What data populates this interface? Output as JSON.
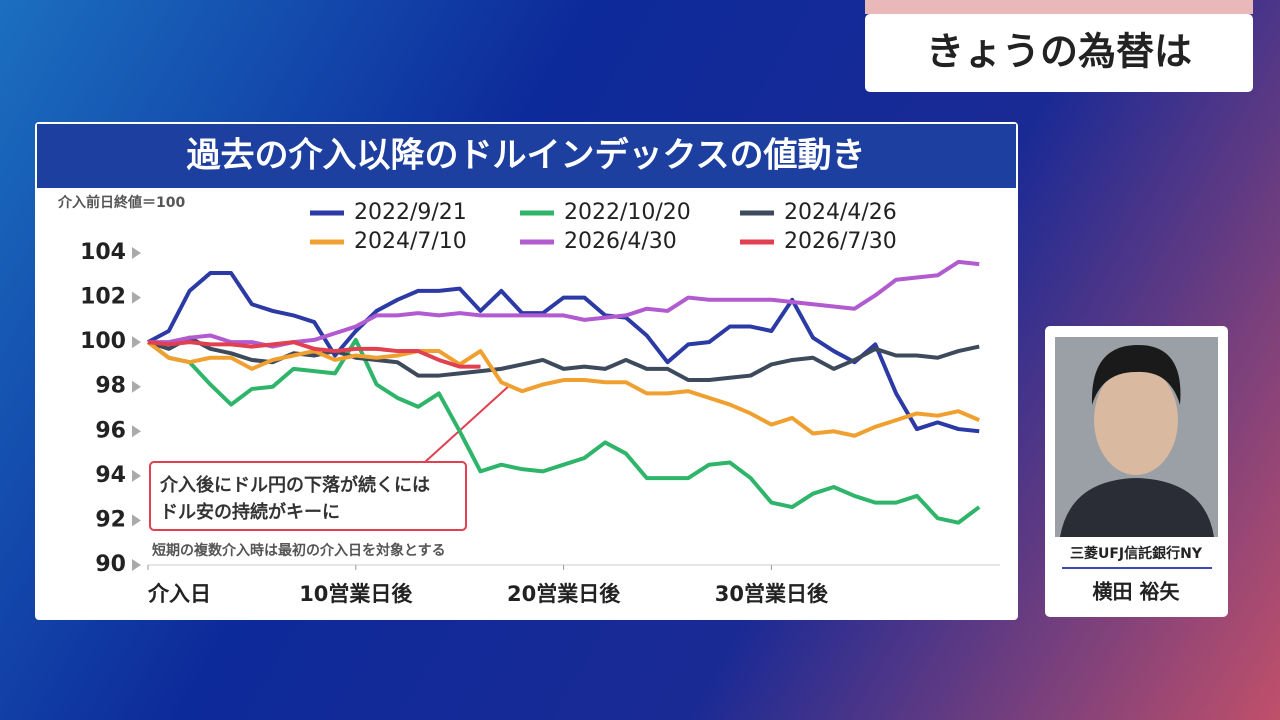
{
  "header": {
    "title": "きょうの為替は"
  },
  "speaker": {
    "affiliation": "三菱UFJ信託銀行NY",
    "name": "横田 裕矢"
  },
  "chart_data": {
    "type": "line",
    "title": "過去の介入以降のドルインデックスの値動き",
    "y_label": "介入前日終値＝100",
    "annotation": [
      "介入後にドル円の下落が続くには",
      "ドル安の持続がキーに"
    ],
    "note": "短期の複数介入時は最初の介入日を対象とする",
    "x": [
      0,
      1,
      2,
      3,
      4,
      5,
      6,
      7,
      8,
      9,
      10,
      11,
      12,
      13,
      14,
      15,
      16,
      17,
      18,
      19,
      20,
      21,
      22,
      23,
      24,
      25,
      26,
      27,
      28,
      29,
      30,
      31,
      32,
      33,
      34,
      35,
      36,
      37,
      38,
      39,
      40
    ],
    "xlim": [
      0,
      41
    ],
    "xticks": [
      {
        "value": 0,
        "label": "介入日"
      },
      {
        "value": 10,
        "label": "10営業日後"
      },
      {
        "value": 20,
        "label": "20営業日後"
      },
      {
        "value": 30,
        "label": "30営業日後"
      }
    ],
    "ylim": [
      90,
      104
    ],
    "yticks": [
      90,
      92,
      94,
      96,
      98,
      100,
      102,
      104
    ],
    "series": [
      {
        "name": "2022/9/21",
        "color": "#2b3aa5",
        "values": [
          100,
          100.5,
          102.3,
          103.1,
          103.1,
          101.7,
          101.4,
          101.2,
          100.9,
          99.4,
          100.5,
          101.4,
          101.9,
          102.3,
          102.3,
          102.4,
          101.4,
          102.3,
          101.3,
          101.3,
          102.0,
          102.0,
          101.2,
          101.1,
          100.3,
          99.1,
          99.9,
          100.0,
          100.7,
          100.7,
          100.5,
          101.9,
          100.2,
          99.6,
          99.1,
          99.9,
          97.7,
          96.1,
          96.4,
          96.1,
          96.0
        ]
      },
      {
        "name": "2022/10/20",
        "color": "#2fb56a",
        "values": [
          100,
          99.3,
          99.1,
          98.1,
          97.2,
          97.9,
          98.0,
          98.8,
          98.7,
          98.6,
          100.1,
          98.1,
          97.5,
          97.1,
          97.7,
          96.0,
          94.2,
          94.5,
          94.3,
          94.2,
          94.5,
          94.8,
          95.5,
          95.0,
          93.9,
          93.9,
          93.9,
          94.5,
          94.6,
          93.9,
          92.8,
          92.6,
          93.2,
          93.5,
          93.1,
          92.8,
          92.8,
          93.1,
          92.1,
          91.9,
          92.6
        ]
      },
      {
        "name": "2024/4/26",
        "color": "#3d4a5c",
        "values": [
          100,
          99.7,
          100.2,
          99.7,
          99.5,
          99.2,
          99.1,
          99.5,
          99.4,
          99.6,
          99.3,
          99.2,
          99.1,
          98.5,
          98.5,
          98.6,
          98.7,
          98.8,
          99.0,
          99.2,
          98.8,
          98.9,
          98.8,
          99.2,
          98.8,
          98.8,
          98.3,
          98.3,
          98.4,
          98.5,
          99.0,
          99.2,
          99.3,
          98.8,
          99.2,
          99.7,
          99.4,
          99.4,
          99.3,
          99.6,
          99.8
        ]
      },
      {
        "name": "2024/7/10",
        "color": "#f0a030",
        "values": [
          100,
          99.3,
          99.1,
          99.3,
          99.3,
          98.8,
          99.2,
          99.4,
          99.6,
          99.2,
          99.4,
          99.3,
          99.4,
          99.6,
          99.6,
          99.0,
          99.6,
          98.2,
          97.8,
          98.1,
          98.3,
          98.3,
          98.2,
          98.2,
          97.7,
          97.7,
          97.8,
          97.5,
          97.2,
          96.8,
          96.3,
          96.6,
          95.9,
          96.0,
          95.8,
          96.2,
          96.5,
          96.8,
          96.7,
          96.9,
          96.5
        ]
      },
      {
        "name": "2026/4/30",
        "color": "#b25ad0",
        "values": [
          100,
          100.0,
          100.2,
          100.3,
          100.0,
          100.0,
          99.8,
          100.0,
          100.1,
          100.4,
          100.7,
          101.2,
          101.2,
          101.3,
          101.2,
          101.3,
          101.2,
          101.2,
          101.2,
          101.2,
          101.2,
          101.0,
          101.1,
          101.2,
          101.5,
          101.4,
          102.0,
          101.9,
          101.9,
          101.9,
          101.9,
          101.8,
          101.7,
          101.6,
          101.5,
          102.1,
          102.8,
          102.9,
          103.0,
          103.6,
          103.5
        ]
      },
      {
        "name": "2026/7/30",
        "color": "#e04050",
        "values": [
          100,
          99.9,
          100.0,
          99.9,
          99.9,
          99.8,
          99.9,
          100.0,
          99.7,
          99.6,
          99.7,
          99.7,
          99.6,
          99.6,
          99.2,
          98.9,
          98.9,
          null,
          null,
          null,
          null,
          null,
          null,
          null,
          null,
          null,
          null,
          null,
          null,
          null,
          null,
          null,
          null,
          null,
          null,
          null,
          null,
          null,
          null,
          null,
          null
        ]
      }
    ]
  }
}
